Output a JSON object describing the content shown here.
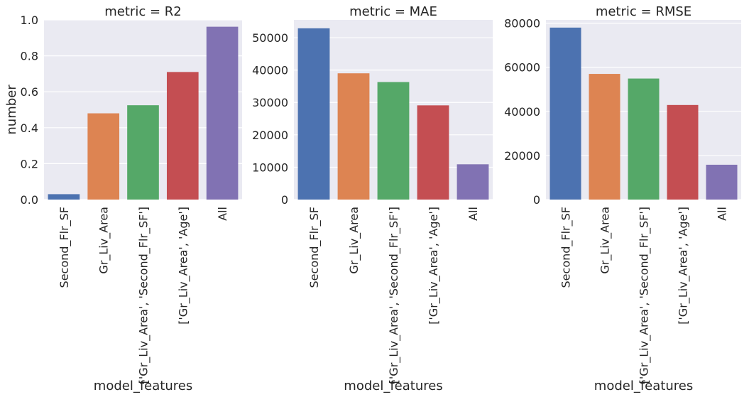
{
  "chart_data": [
    {
      "type": "bar",
      "title": "metric = R2",
      "xlabel": "model_features",
      "ylabel": "number",
      "categories": [
        "Second_Flr_SF",
        "Gr_Liv_Area",
        "['Gr_Liv_Area', 'Second_Flr_SF']",
        "['Gr_Liv_Area', 'Age']",
        "All"
      ],
      "values": [
        0.03,
        0.48,
        0.525,
        0.71,
        0.962
      ],
      "ylim": [
        0,
        1.0
      ],
      "yticks": [
        "0.0",
        "0.2",
        "0.4",
        "0.6",
        "0.8",
        "1.0"
      ],
      "ytick_values": [
        0,
        0.2,
        0.4,
        0.6,
        0.8,
        1.0
      ],
      "grid": true
    },
    {
      "type": "bar",
      "title": "metric = MAE",
      "xlabel": "model_features",
      "ylabel": "",
      "categories": [
        "Second_Flr_SF",
        "Gr_Liv_Area",
        "['Gr_Liv_Area', 'Second_Flr_SF']",
        "['Gr_Liv_Area', 'Age']",
        "All"
      ],
      "values": [
        52900,
        39000,
        36300,
        29100,
        10900
      ],
      "ylim": [
        0,
        55500
      ],
      "yticks": [
        "0",
        "10000",
        "20000",
        "30000",
        "40000",
        "50000"
      ],
      "ytick_values": [
        0,
        10000,
        20000,
        30000,
        40000,
        50000
      ],
      "grid": true
    },
    {
      "type": "bar",
      "title": "metric = RMSE",
      "xlabel": "model_features",
      "ylabel": "",
      "categories": [
        "Second_Flr_SF",
        "Gr_Liv_Area",
        "['Gr_Liv_Area', 'Second_Flr_SF']",
        "['Gr_Liv_Area', 'Age']",
        "All"
      ],
      "values": [
        78000,
        57000,
        54900,
        42900,
        15800
      ],
      "ylim": [
        0,
        81500
      ],
      "yticks": [
        "0",
        "20000",
        "40000",
        "60000",
        "80000"
      ],
      "ytick_values": [
        0,
        20000,
        40000,
        60000,
        80000
      ],
      "grid": true
    }
  ],
  "colors": {
    "palette": [
      "#4c72b0",
      "#dd8452",
      "#55a868",
      "#c44e52",
      "#8172b3"
    ],
    "axes_bg": "#eaeaf2",
    "grid": "#ffffff",
    "text": "#262626"
  }
}
